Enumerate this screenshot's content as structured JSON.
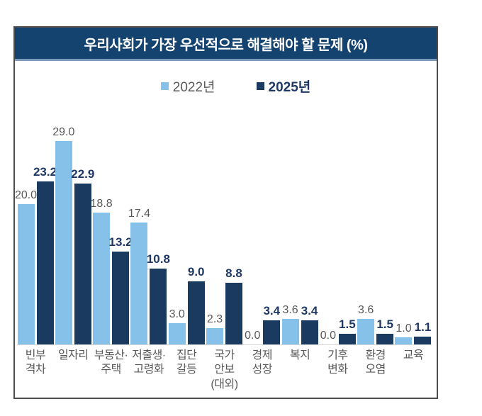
{
  "header": {
    "title": "우리사회가 가장 우선적으로 해결해야 할 문제 (%)"
  },
  "colors": {
    "header_bg": "#15436F",
    "header_underline": "#7C9CBD",
    "panel_border": "#4e4e4e",
    "series_2022": "#85C1E9",
    "series_2025": "#1B3A5F",
    "label_2022_text": "#595959",
    "label_2025_text": "#1F3864",
    "title_text": "#ffffff"
  },
  "chart_data": {
    "type": "bar",
    "title": "우리사회가 가장 우선적으로 해결해야 할 문제 (%)",
    "xlabel": "",
    "ylabel": "%",
    "ylim": [
      0,
      30
    ],
    "grid": false,
    "legend_position": "top-center",
    "value_labels": true,
    "categories": [
      "빈부격차",
      "일자리",
      "부동산·주택",
      "저출생·고령화",
      "집단갈등",
      "국가안보(대외)",
      "경제성장",
      "복지",
      "기후변화",
      "환경오염",
      "교육"
    ],
    "category_lines": [
      [
        "빈부",
        "격차"
      ],
      [
        "일자리"
      ],
      [
        "부동산·",
        "주택"
      ],
      [
        "저출생·",
        "고령화"
      ],
      [
        "집단",
        "갈등"
      ],
      [
        "국가",
        "안보",
        "(대외)"
      ],
      [
        "경제",
        "성장"
      ],
      [
        "복지"
      ],
      [
        "기후",
        "변화"
      ],
      [
        "환경",
        "오염"
      ],
      [
        "교육"
      ]
    ],
    "series": [
      {
        "name": "2022년",
        "color": "#85C1E9",
        "values": [
          20.0,
          29.0,
          18.8,
          17.4,
          3.0,
          2.3,
          0.0,
          3.6,
          0.0,
          3.6,
          1.0
        ]
      },
      {
        "name": "2025년",
        "color": "#1B3A5F",
        "values": [
          23.2,
          22.9,
          13.2,
          10.8,
          9.0,
          8.8,
          3.4,
          3.4,
          1.5,
          1.5,
          1.1
        ]
      }
    ]
  }
}
